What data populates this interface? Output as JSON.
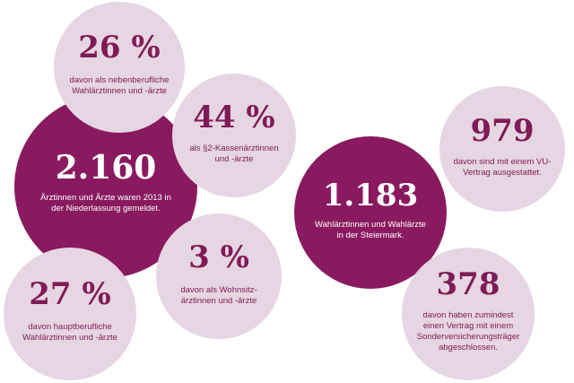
{
  "colors": {
    "dark": "#8a1a5f",
    "light": "#e6d5e3",
    "light_text": "#7f1b56"
  },
  "group_left": {
    "main": {
      "value": "2.160",
      "caption": "Ärztinnen und Ärzte waren 2013 in der Niederlassung gemeldet."
    },
    "pct_26": {
      "value": "26 %",
      "caption": "davon als nebenberufliche Wahlärztinnen und -ärzte"
    },
    "pct_44": {
      "value": "44 %",
      "caption": "als §2-Kassenärztinnen und -ärzte"
    },
    "pct_3": {
      "value": "3 %",
      "caption": "davon als Wohnsitz-ärztinnen und -ärzte"
    },
    "pct_27": {
      "value": "27 %",
      "caption": "davon hauptberufliche Wahlärztinnen und -ärzte"
    }
  },
  "group_right": {
    "main": {
      "value": "1.183",
      "caption": "Wahlärztinnen und Wahlärzte in der Steiermark."
    },
    "n_979": {
      "value": "979",
      "caption": "davon sind mit einem VU-Vertrag ausgestattet."
    },
    "n_378": {
      "value": "378",
      "caption": "davon haben zumindest einen Vertrag mit einem Sonderversicherungsträger abgeschlossen."
    }
  }
}
